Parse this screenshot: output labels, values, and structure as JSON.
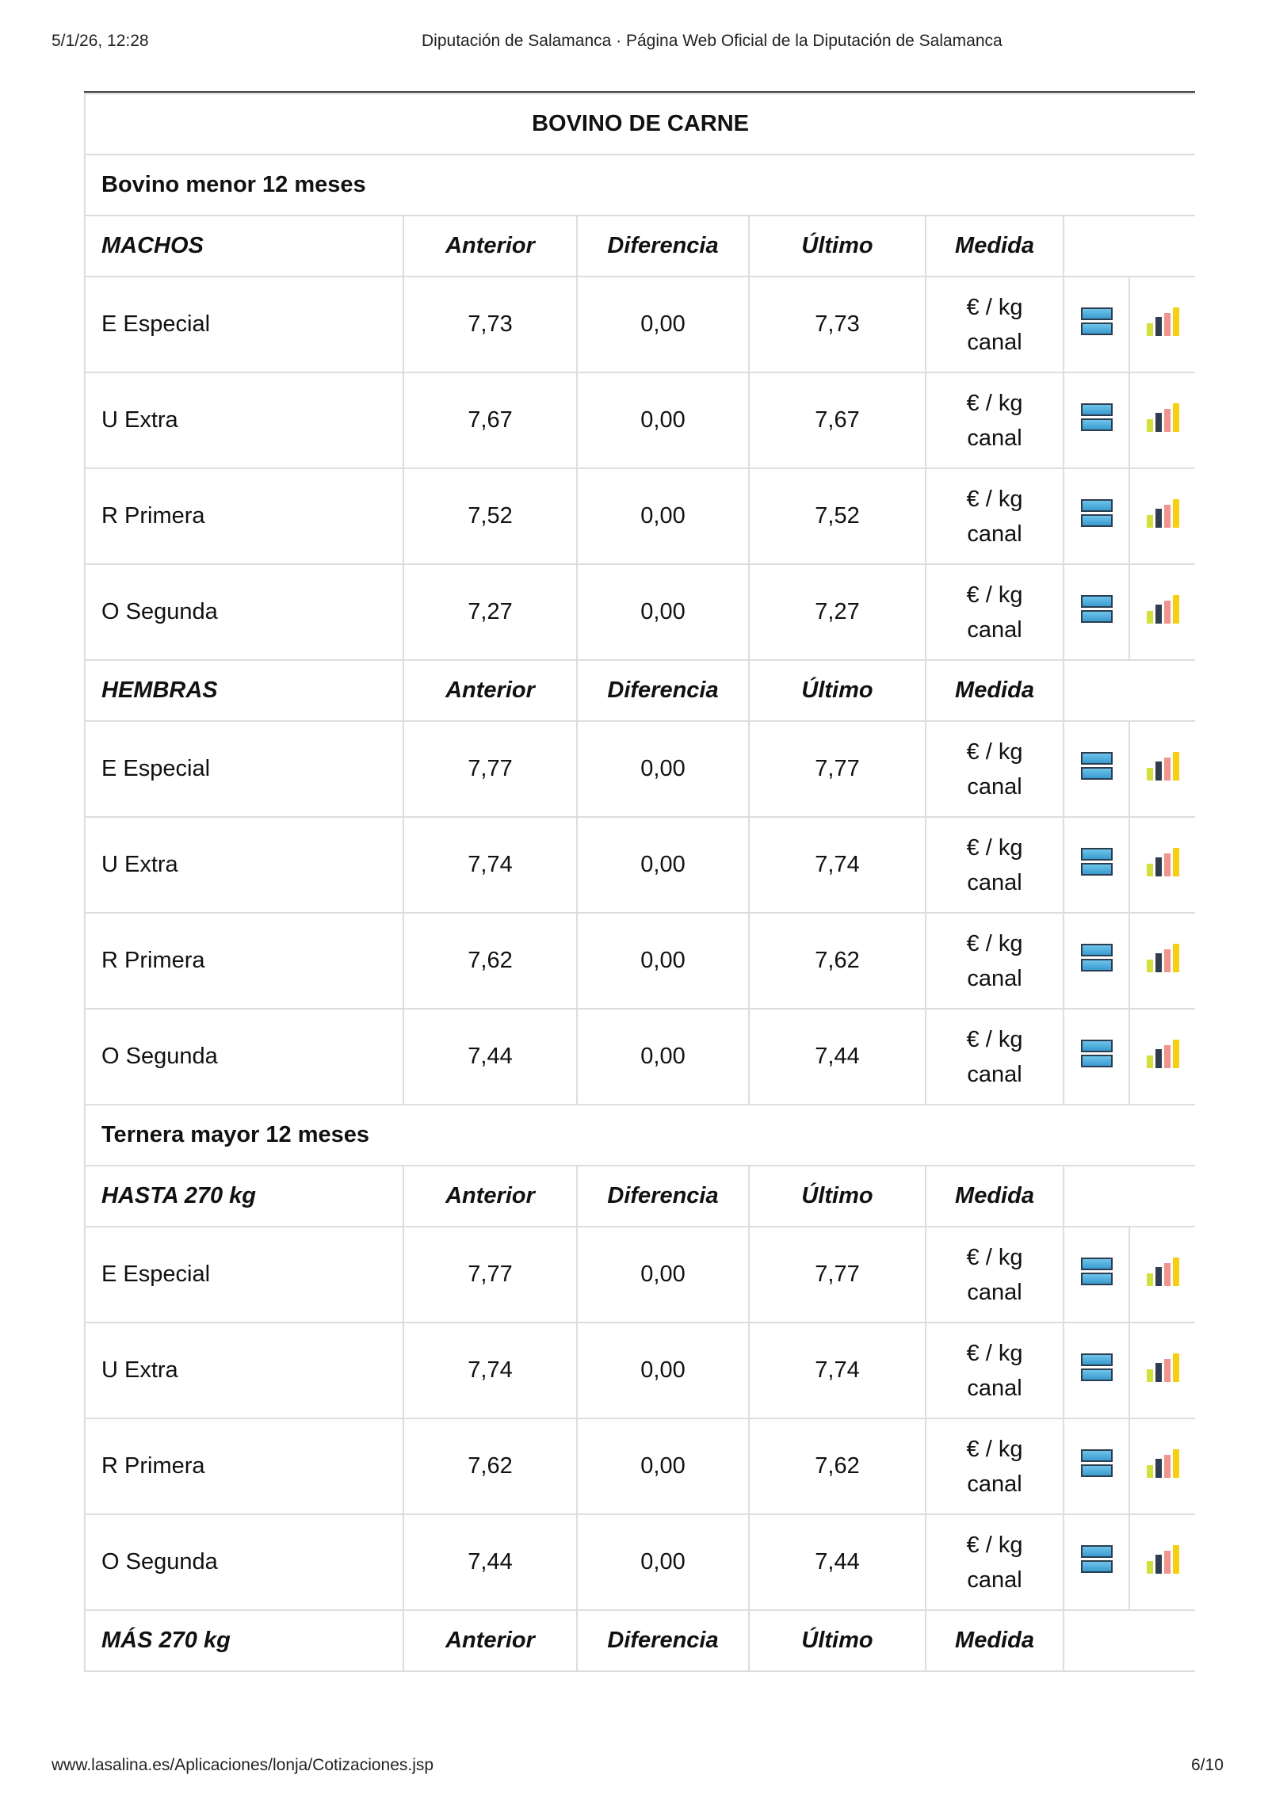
{
  "header": {
    "datetime": "5/1/26, 12:28",
    "title": "Diputación de Salamanca · Página Web Oficial de la Diputación de Salamanca"
  },
  "footer": {
    "url": "www.lasalina.es/Aplicaciones/lonja/Cotizaciones.jsp",
    "page": "6/10"
  },
  "icon_colors": {
    "list": "#4aaee0",
    "chart": [
      "#d4e03a",
      "#2e3e50",
      "#f0948c",
      "#f5cf10"
    ]
  },
  "table": {
    "title": "BOVINO DE CARNE",
    "columns": [
      "Anterior",
      "Diferencia",
      "Último",
      "Medida"
    ],
    "unit": [
      "€ / kg",
      "canal"
    ],
    "sections": [
      {
        "name": "Bovino menor 12 meses",
        "groups": [
          {
            "name": "MACHOS",
            "rows": [
              {
                "label": "E Especial",
                "anterior": "7,73",
                "diferencia": "0,00",
                "ultimo": "7,73"
              },
              {
                "label": "U Extra",
                "anterior": "7,67",
                "diferencia": "0,00",
                "ultimo": "7,67"
              },
              {
                "label": "R Primera",
                "anterior": "7,52",
                "diferencia": "0,00",
                "ultimo": "7,52"
              },
              {
                "label": "O Segunda",
                "anterior": "7,27",
                "diferencia": "0,00",
                "ultimo": "7,27"
              }
            ]
          },
          {
            "name": "HEMBRAS",
            "rows": [
              {
                "label": "E Especial",
                "anterior": "7,77",
                "diferencia": "0,00",
                "ultimo": "7,77"
              },
              {
                "label": "U Extra",
                "anterior": "7,74",
                "diferencia": "0,00",
                "ultimo": "7,74"
              },
              {
                "label": "R Primera",
                "anterior": "7,62",
                "diferencia": "0,00",
                "ultimo": "7,62"
              },
              {
                "label": "O Segunda",
                "anterior": "7,44",
                "diferencia": "0,00",
                "ultimo": "7,44"
              }
            ]
          }
        ]
      },
      {
        "name": "Ternera mayor 12 meses",
        "groups": [
          {
            "name": "HASTA 270 kg",
            "rows": [
              {
                "label": "E Especial",
                "anterior": "7,77",
                "diferencia": "0,00",
                "ultimo": "7,77"
              },
              {
                "label": "U Extra",
                "anterior": "7,74",
                "diferencia": "0,00",
                "ultimo": "7,74"
              },
              {
                "label": "R Primera",
                "anterior": "7,62",
                "diferencia": "0,00",
                "ultimo": "7,62"
              },
              {
                "label": "O Segunda",
                "anterior": "7,44",
                "diferencia": "0,00",
                "ultimo": "7,44"
              }
            ]
          },
          {
            "name": "MÁS 270 kg",
            "rows": []
          }
        ]
      }
    ]
  }
}
